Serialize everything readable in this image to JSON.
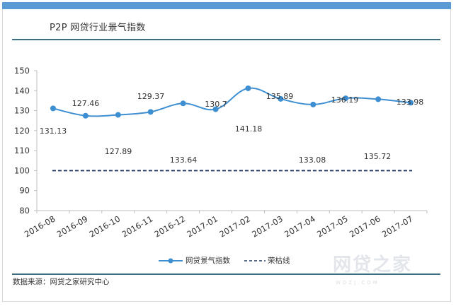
{
  "header": {
    "title": "P2P 网贷行业景气指数"
  },
  "footer": {
    "source": "数据来源：网贷之家研究中心",
    "watermark": "网贷之家",
    "watermark_sub": "WDZJ.COM"
  },
  "legend": {
    "series_label": "网贷景气指数",
    "threshold_label": "荣枯线"
  },
  "colors": {
    "top_bar": "#5b9bd5",
    "series": "#3d8fd1",
    "threshold": "#1f3864",
    "rule": "#3d6e80"
  },
  "chart_data": {
    "type": "line",
    "title": "P2P 网贷行业景气指数",
    "xlabel": "",
    "ylabel": "",
    "categories": [
      "2016-08",
      "2016-09",
      "2016-10",
      "2016-11",
      "2016-12",
      "2017-01",
      "2017-02",
      "2017-03",
      "2017-04",
      "2017-05",
      "2017-06",
      "2017-07"
    ],
    "series": [
      {
        "name": "网贷景气指数",
        "values": [
          131.13,
          127.46,
          127.89,
          129.37,
          133.64,
          130.7,
          141.18,
          135.89,
          133.08,
          136.19,
          135.72,
          133.98
        ],
        "style": "smooth line with circle markers",
        "color": "#3d8fd1"
      },
      {
        "name": "荣枯线",
        "values": [
          100,
          100,
          100,
          100,
          100,
          100,
          100,
          100,
          100,
          100,
          100,
          100
        ],
        "style": "dashed",
        "color": "#1f3864"
      }
    ],
    "data_labels": [
      "131.13",
      "127.46",
      "127.89",
      "129.37",
      "133.64",
      "130.7",
      "141.18",
      "135.89",
      "133.08",
      "136.19",
      "135.72",
      "133.98"
    ],
    "yticks": [
      80,
      90,
      100,
      110,
      120,
      130,
      140,
      150
    ],
    "ylim": [
      80,
      150
    ],
    "grid": false,
    "legend_position": "bottom"
  }
}
